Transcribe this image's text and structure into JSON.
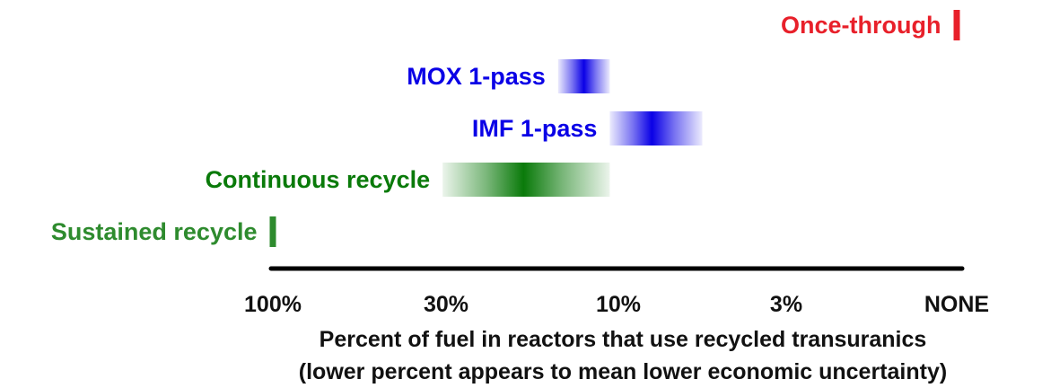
{
  "chart_data": {
    "type": "bar",
    "subtype": "range",
    "x_axis": {
      "tick_labels": [
        "100%",
        "30%",
        "10%",
        "3%",
        "NONE"
      ],
      "label": "Percent of fuel in reactors that use recycled transuranics",
      "sublabel": "(lower percent appears to mean lower economic uncertainty)",
      "scale": "log"
    },
    "series": [
      {
        "name": "Once-through",
        "style": "marker",
        "value_tick": 4,
        "color": "#e8202a"
      },
      {
        "name": "MOX 1-pass",
        "style": "range",
        "range_ticks": [
          1.65,
          1.95
        ],
        "peak_tick": 1.8,
        "color": "#0a00e6"
      },
      {
        "name": "IMF 1-pass",
        "style": "range",
        "range_ticks": [
          1.95,
          2.5
        ],
        "peak_tick": 2.2,
        "color": "#0a00e6"
      },
      {
        "name": "Continuous recycle",
        "style": "range",
        "range_ticks": [
          0.98,
          1.95
        ],
        "peak_tick": 1.45,
        "color": "#0a7a0a"
      },
      {
        "name": "Sustained recycle",
        "style": "marker",
        "value_tick": 0,
        "color": "#2e8b2e"
      }
    ],
    "grid": false,
    "legend": "none"
  }
}
